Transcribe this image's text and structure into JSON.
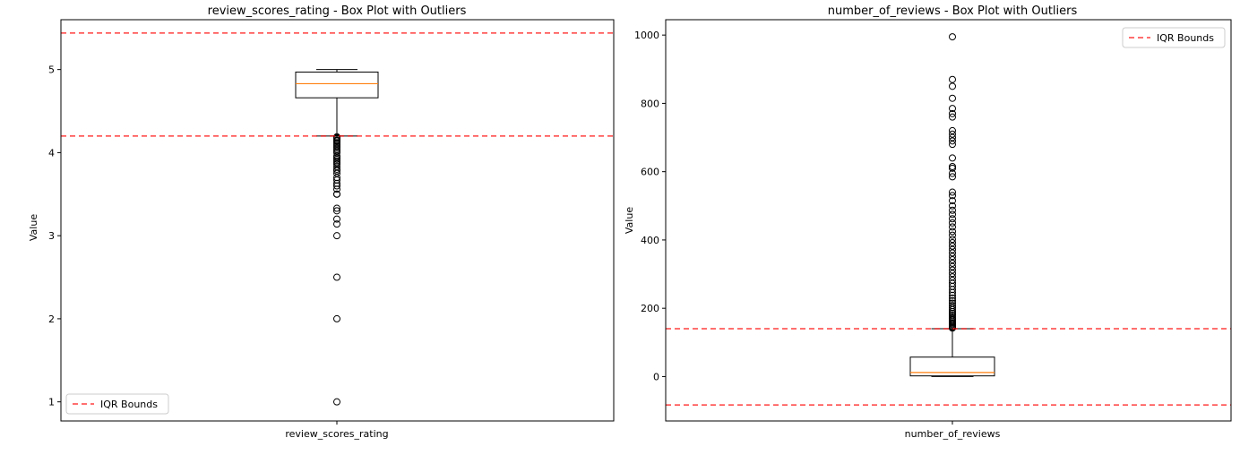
{
  "chart_data": [
    {
      "type": "box",
      "title": "review_scores_rating - Box Plot with Outliers",
      "xlabel": "",
      "ylabel": "Value",
      "category": "review_scores_rating",
      "ylim": [
        0.77,
        5.6
      ],
      "yticks": [
        1,
        2,
        3,
        4,
        5
      ],
      "box": {
        "whisker_low": 4.2,
        "q1": 4.66,
        "median": 4.83,
        "q3": 4.97,
        "whisker_high": 5.0
      },
      "outliers": [
        1.0,
        2.0,
        2.5,
        3.0,
        3.14,
        3.2,
        3.3,
        3.33,
        3.5,
        3.5,
        3.56,
        3.6,
        3.63,
        3.67,
        3.7,
        3.75,
        3.78,
        3.8,
        3.83,
        3.86,
        3.88,
        3.9,
        3.92,
        3.94,
        3.96,
        4.0,
        4.02,
        4.04,
        4.06,
        4.08,
        4.1,
        4.12,
        4.14,
        4.15,
        4.17,
        4.18,
        4.19
      ],
      "iqr_bounds": [
        4.2,
        5.44
      ],
      "legend": {
        "label": "IQR Bounds",
        "position": "bottom-left"
      },
      "line_color": "#ff0000",
      "median_color": "#ff7f0e"
    },
    {
      "type": "box",
      "title": "number_of_reviews - Box Plot with Outliers",
      "xlabel": "",
      "ylabel": "Value",
      "category": "number_of_reviews",
      "ylim": [
        -130,
        1045
      ],
      "yticks": [
        0,
        200,
        400,
        600,
        800,
        1000
      ],
      "box": {
        "whisker_low": 0,
        "q1": 2,
        "median": 12,
        "q3": 57,
        "whisker_high": 140
      },
      "outliers": [
        142,
        145,
        148,
        152,
        155,
        158,
        162,
        166,
        170,
        175,
        180,
        185,
        190,
        196,
        202,
        208,
        215,
        222,
        230,
        238,
        246,
        255,
        264,
        273,
        282,
        292,
        302,
        312,
        322,
        332,
        342,
        352,
        362,
        372,
        382,
        392,
        402,
        414,
        425,
        438,
        450,
        462,
        475,
        487,
        500,
        515,
        530,
        540,
        585,
        595,
        610,
        615,
        640,
        680,
        690,
        700,
        710,
        720,
        760,
        770,
        785,
        815,
        850,
        870,
        995
      ],
      "iqr_bounds": [
        -83,
        140
      ],
      "legend": {
        "label": "IQR Bounds",
        "position": "top-right"
      },
      "line_color": "#ff0000",
      "median_color": "#ff7f0e"
    }
  ]
}
